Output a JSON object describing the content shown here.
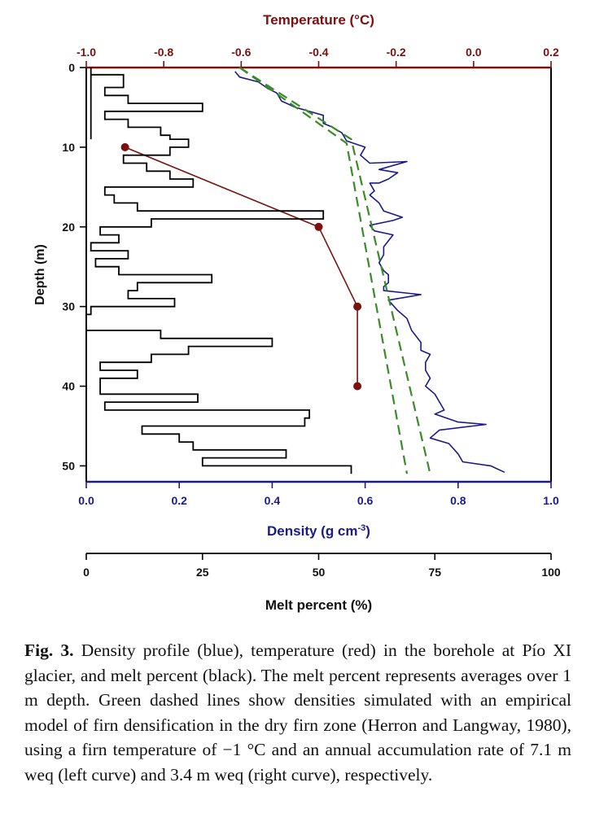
{
  "chart_data": {
    "type": "line",
    "axes": {
      "temperature": {
        "label": "Temperature (°C)",
        "range": [
          -1.0,
          0.2
        ],
        "ticks": [
          -1.0,
          -0.8,
          -0.6,
          -0.4,
          -0.2,
          0.0,
          0.2
        ],
        "tick_labels": [
          "-1.0",
          "-0.8",
          "-0.6",
          "-0.4",
          "-0.2",
          "0.0",
          "0.2"
        ],
        "position": "top",
        "color": "#7a1010"
      },
      "density": {
        "label": "Density (g cm",
        "label_superscript": "-3",
        "label_suffix": ")",
        "range": [
          0.0,
          1.0
        ],
        "ticks": [
          0.0,
          0.2,
          0.4,
          0.6,
          0.8,
          1.0
        ],
        "tick_labels": [
          "0.0",
          "0.2",
          "0.4",
          "0.6",
          "0.8",
          "1.0"
        ],
        "position": "bottom",
        "color": "#1a1a8c"
      },
      "melt": {
        "label": "Melt percent (%)",
        "range": [
          0,
          100
        ],
        "ticks": [
          0,
          25,
          50,
          75,
          100
        ],
        "tick_labels": [
          "0",
          "25",
          "50",
          "75",
          "100"
        ],
        "position": "bottom-secondary",
        "color": "#000000"
      },
      "depth": {
        "label": "Depth (m)",
        "range": [
          0,
          52
        ],
        "inverted": true,
        "ticks": [
          0,
          10,
          20,
          30,
          40,
          50
        ],
        "tick_labels": [
          "0",
          "10",
          "20",
          "30",
          "40",
          "50"
        ]
      }
    },
    "series": [
      {
        "axis": "density",
        "color": "#1a1a8c",
        "style": "solid",
        "points": [
          [
            0.32,
            0.5
          ],
          [
            0.33,
            1.2
          ],
          [
            0.37,
            1.8
          ],
          [
            0.39,
            2.6
          ],
          [
            0.41,
            3.2
          ],
          [
            0.42,
            4.2
          ],
          [
            0.45,
            5.0
          ],
          [
            0.51,
            6.0
          ],
          [
            0.51,
            7.0
          ],
          [
            0.53,
            7.5
          ],
          [
            0.55,
            8.2
          ],
          [
            0.56,
            9.2
          ],
          [
            0.6,
            10.0
          ],
          [
            0.59,
            11.0
          ],
          [
            0.61,
            12.0
          ],
          [
            0.69,
            11.8
          ],
          [
            0.63,
            12.8
          ],
          [
            0.67,
            13.2
          ],
          [
            0.65,
            14.0
          ],
          [
            0.63,
            14.5
          ],
          [
            0.61,
            14.5
          ],
          [
            0.62,
            15.5
          ],
          [
            0.61,
            16.0
          ],
          [
            0.63,
            17.0
          ],
          [
            0.64,
            18.0
          ],
          [
            0.68,
            18.8
          ],
          [
            0.66,
            19.2
          ],
          [
            0.61,
            19.8
          ],
          [
            0.62,
            20.5
          ],
          [
            0.66,
            21.0
          ],
          [
            0.64,
            22.5
          ],
          [
            0.64,
            23.5
          ],
          [
            0.63,
            24.5
          ],
          [
            0.64,
            25.5
          ],
          [
            0.65,
            26.0
          ],
          [
            0.65,
            27.0
          ],
          [
            0.64,
            27.5
          ],
          [
            0.64,
            28.0
          ],
          [
            0.72,
            28.5
          ],
          [
            0.65,
            29.2
          ],
          [
            0.67,
            30.5
          ],
          [
            0.69,
            31.5
          ],
          [
            0.7,
            33.0
          ],
          [
            0.72,
            34.5
          ],
          [
            0.72,
            35.5
          ],
          [
            0.74,
            36.0
          ],
          [
            0.73,
            37.0
          ],
          [
            0.73,
            38.0
          ],
          [
            0.74,
            39.0
          ],
          [
            0.73,
            40.0
          ],
          [
            0.75,
            41.0
          ],
          [
            0.76,
            42.0
          ],
          [
            0.77,
            43.0
          ],
          [
            0.75,
            43.5
          ],
          [
            0.8,
            44.5
          ],
          [
            0.86,
            44.8
          ],
          [
            0.76,
            45.5
          ],
          [
            0.74,
            46.5
          ],
          [
            0.78,
            47.2
          ],
          [
            0.8,
            48.5
          ],
          [
            0.81,
            49.5
          ],
          [
            0.87,
            50.0
          ],
          [
            0.9,
            50.8
          ]
        ]
      },
      {
        "axis": "temperature",
        "color": "#7a1010",
        "style": "solid-markers",
        "points": [
          [
            -0.9,
            10.0
          ],
          [
            -0.4,
            20.0
          ],
          [
            -0.3,
            30.0
          ],
          [
            -0.3,
            40.0
          ]
        ]
      },
      {
        "axis": "melt",
        "color": "#000000",
        "style": "step",
        "segments": [
          [
            1,
            0,
            0
          ],
          [
            1,
            9,
            0.9
          ],
          [
            8,
            0.9,
            2.5
          ],
          [
            4,
            2.5,
            3.5
          ],
          [
            9,
            3.5,
            4.5
          ],
          [
            25,
            4.5,
            5.5
          ],
          [
            4,
            5.5,
            6.5
          ],
          [
            9,
            6.5,
            7.5
          ],
          [
            16,
            7.5,
            8.5
          ],
          [
            18,
            8.5,
            9
          ],
          [
            22,
            9,
            10
          ],
          [
            18,
            10,
            11
          ],
          [
            8,
            11,
            12
          ],
          [
            13,
            12,
            13
          ],
          [
            18,
            13,
            14
          ],
          [
            23,
            14,
            15
          ],
          [
            4,
            15,
            16
          ],
          [
            6,
            16,
            17
          ],
          [
            11,
            17,
            18
          ],
          [
            51,
            18,
            19
          ],
          [
            14,
            19,
            20
          ],
          [
            3,
            20,
            21
          ],
          [
            7,
            21,
            22
          ],
          [
            1,
            22,
            23
          ],
          [
            9,
            23,
            24
          ],
          [
            2,
            24,
            25
          ],
          [
            7,
            25,
            26
          ],
          [
            27,
            26,
            27
          ],
          [
            11,
            27,
            28
          ],
          [
            9,
            28,
            29
          ],
          [
            19,
            29,
            30
          ],
          [
            1,
            30,
            31
          ],
          [
            0,
            31,
            32
          ],
          [
            0,
            32,
            33
          ],
          [
            16,
            33,
            34
          ],
          [
            40,
            34,
            35
          ],
          [
            22,
            35,
            36
          ],
          [
            14,
            36,
            37
          ],
          [
            3,
            37,
            38
          ],
          [
            11,
            38,
            39
          ],
          [
            3,
            39,
            40
          ],
          [
            3,
            40,
            41
          ],
          [
            24,
            41,
            42
          ],
          [
            4,
            42,
            43
          ],
          [
            48,
            43,
            44
          ],
          [
            47,
            44,
            45
          ],
          [
            12,
            45,
            46
          ],
          [
            20,
            46,
            47
          ],
          [
            23,
            47,
            48
          ],
          [
            43,
            48,
            49
          ],
          [
            25,
            49,
            50
          ],
          [
            57,
            50,
            51
          ]
        ]
      },
      {
        "axis": "density",
        "color": "#3a8a2a",
        "style": "dashed",
        "points": [
          [
            0.33,
            0.0
          ],
          [
            0.56,
            9.5
          ],
          [
            0.69,
            51.0
          ]
        ]
      },
      {
        "axis": "density",
        "color": "#3a8a2a",
        "style": "dashed",
        "points": [
          [
            0.33,
            0.0
          ],
          [
            0.57,
            9.0
          ],
          [
            0.74,
            51.0
          ]
        ]
      }
    ]
  },
  "caption": {
    "label": "Fig. 3.",
    "text": " Density profile (blue), temperature (red) in the borehole at Pío XI glacier, and melt percent (black). The melt percent represents averages over 1 m depth. Green dashed lines show densities simulated with an empirical model of firn densification in the dry firn zone (Herron and Langway, 1980), using a firn temperature of −1 °C and an annual accumulation rate of 7.1 m weq (left curve) and 3.4 m weq (right curve), respectively."
  }
}
